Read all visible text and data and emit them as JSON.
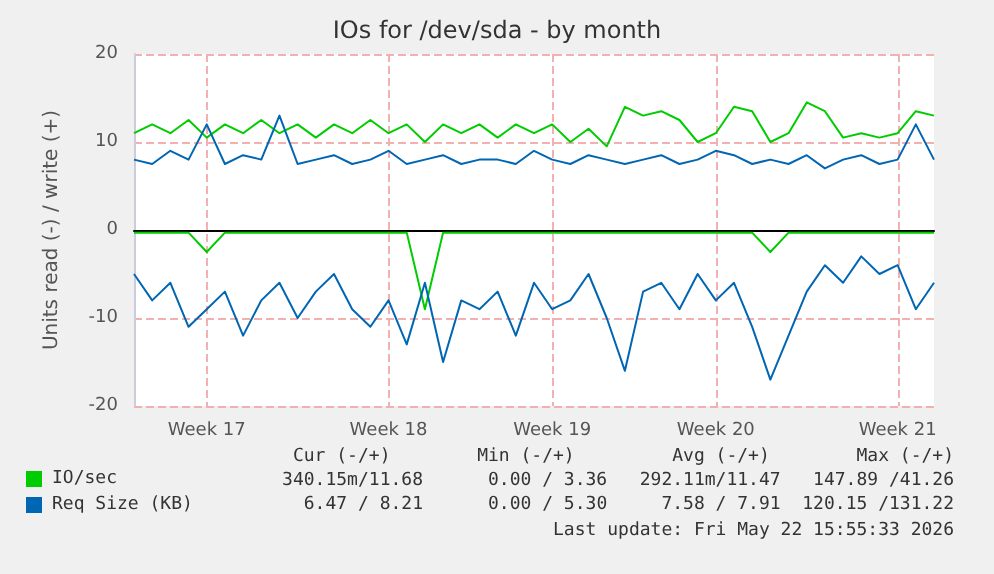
{
  "chart_data": {
    "type": "line",
    "title": "IOs for /dev/sda - by month",
    "ylabel": "Units read (-) / write (+)",
    "categories": [
      null,
      null,
      null,
      null,
      "Week 17",
      null,
      null,
      null,
      null,
      null,
      null,
      null,
      null,
      null,
      "Week 18",
      null,
      null,
      null,
      null,
      null,
      null,
      null,
      null,
      "Week 19",
      null,
      null,
      null,
      null,
      null,
      null,
      null,
      null,
      "Week 20",
      null,
      null,
      null,
      null,
      null,
      null,
      null,
      null,
      null,
      "Week 21",
      null,
      null
    ],
    "series": [
      {
        "name": "IO/sec",
        "color": "#00cc00",
        "values": [
          11,
          12,
          11,
          12.5,
          10.5,
          12,
          11,
          12.5,
          11,
          12,
          10.5,
          12,
          11,
          12.5,
          11,
          12,
          10,
          12,
          11,
          12,
          10.5,
          12,
          11,
          12,
          10,
          11.5,
          9.5,
          14,
          13,
          13.5,
          12.5,
          10,
          11,
          14,
          13.5,
          10,
          11,
          14.5,
          13.5,
          10.5,
          11,
          10.5,
          11,
          13.5,
          13
        ]
      },
      {
        "color": "#00cc00",
        "values": [
          -0.3,
          -0.3,
          -0.3,
          -0.3,
          -2.5,
          -0.3,
          -0.3,
          -0.3,
          -0.3,
          -0.3,
          -0.3,
          -0.3,
          -0.3,
          -0.3,
          -0.3,
          -0.3,
          -9,
          -0.3,
          -0.3,
          -0.3,
          -0.3,
          -0.3,
          -0.3,
          -0.3,
          -0.3,
          -0.3,
          -0.3,
          -0.3,
          -0.3,
          -0.3,
          -0.3,
          -0.3,
          -0.3,
          -0.3,
          -0.3,
          -2.5,
          -0.3,
          -0.3,
          -0.3,
          -0.3,
          -0.3,
          -0.3,
          -0.3,
          -0.3,
          -0.3
        ]
      },
      {
        "name": "Req Size (KB)",
        "color": "#0066b3",
        "values": [
          8,
          7.5,
          9,
          8,
          12,
          7.5,
          8.5,
          8,
          13,
          7.5,
          8,
          8.5,
          7.5,
          8,
          9,
          7.5,
          8,
          8.5,
          7.5,
          8,
          8,
          7.5,
          9,
          8,
          7.5,
          8.5,
          8,
          7.5,
          8,
          8.5,
          7.5,
          8,
          9,
          8.5,
          7.5,
          8,
          7.5,
          8.5,
          7,
          8,
          8.5,
          7.5,
          8,
          12,
          8
        ]
      },
      {
        "color": "#0066b3",
        "values": [
          -5,
          -8,
          -6,
          -11,
          -9,
          -7,
          -12,
          -8,
          -6,
          -10,
          -7,
          -5,
          -9,
          -11,
          -8,
          -13,
          -6,
          -15,
          -8,
          -9,
          -7,
          -12,
          -6,
          -9,
          -8,
          -5,
          -10,
          -16,
          -7,
          -6,
          -9,
          -5,
          -8,
          -6,
          -11,
          -17,
          -12,
          -7,
          -4,
          -6,
          -3,
          -5,
          -4,
          -9,
          -6
        ]
      }
    ],
    "ylim": [
      -20,
      20
    ],
    "yticks": [
      -20,
      -10,
      0,
      10,
      20
    ],
    "grid": true,
    "legend": "bottom left",
    "marker": "none",
    "line_style": "solid",
    "annotations": [
      "Cur (-/+)        Min (-/+)         Avg (-/+)        Max (-/+)",
      "340.15m/11.68      0.00 / 3.36   292.11m/11.47   147.89 /41.26",
      "6.47 / 8.21      0.00 / 5.30     7.58 / 7.91  120.15 /131.22",
      "Last update: Fri May 22 15:55:33 2026"
    ]
  }
}
